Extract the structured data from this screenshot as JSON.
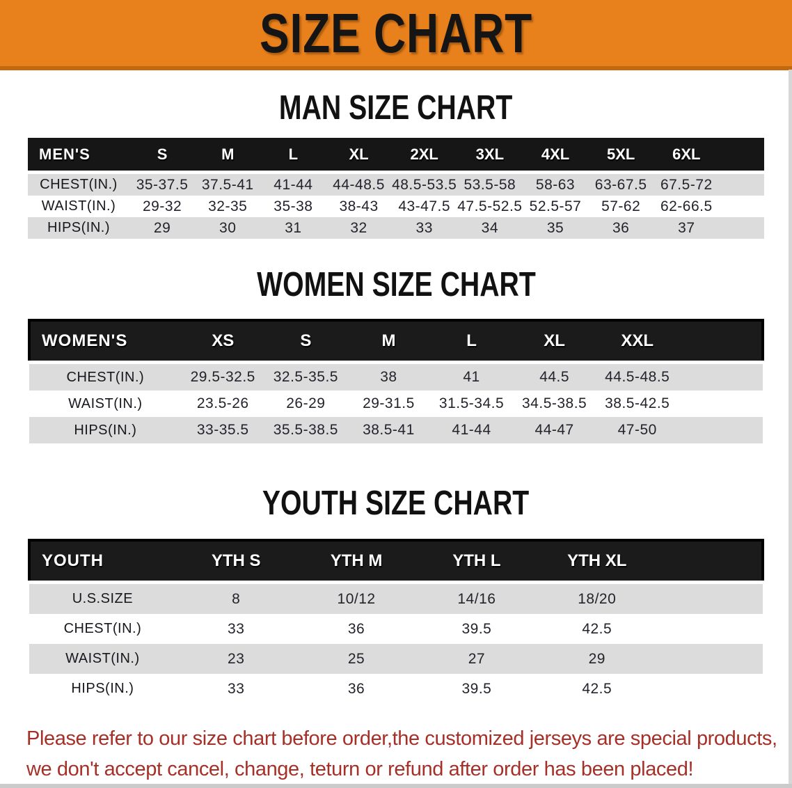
{
  "banner": {
    "title": "SIZE CHART"
  },
  "sections": {
    "men": {
      "heading": "MAN SIZE CHART",
      "table": {
        "header_label": "MEN'S",
        "columns": [
          "S",
          "M",
          "L",
          "XL",
          "2XL",
          "3XL",
          "4XL",
          "5XL",
          "6XL"
        ],
        "rows": [
          {
            "label": "CHEST(IN.)",
            "values": [
              "35-37.5",
              "37.5-41",
              "41-44",
              "44-48.5",
              "48.5-53.5",
              "53.5-58",
              "58-63",
              "63-67.5",
              "67.5-72"
            ]
          },
          {
            "label": "WAIST(IN.)",
            "values": [
              "29-32",
              "32-35",
              "35-38",
              "38-43",
              "43-47.5",
              "47.5-52.5",
              "52.5-57",
              "57-62",
              "62-66.5"
            ]
          },
          {
            "label": "HIPS(IN.)",
            "values": [
              "29",
              "30",
              "31",
              "32",
              "33",
              "34",
              "35",
              "36",
              "37"
            ]
          }
        ]
      }
    },
    "women": {
      "heading": "WOMEN SIZE CHART",
      "table": {
        "header_label": "WOMEN'S",
        "columns": [
          "XS",
          "S",
          "M",
          "L",
          "XL",
          "XXL"
        ],
        "rows": [
          {
            "label": "CHEST(IN.)",
            "values": [
              "29.5-32.5",
              "32.5-35.5",
              "38",
              "41",
              "44.5",
              "44.5-48.5"
            ]
          },
          {
            "label": "WAIST(IN.)",
            "values": [
              "23.5-26",
              "26-29",
              "29-31.5",
              "31.5-34.5",
              "34.5-38.5",
              "38.5-42.5"
            ]
          },
          {
            "label": "HIPS(IN.)",
            "values": [
              "33-35.5",
              "35.5-38.5",
              "38.5-41",
              "41-44",
              "44-47",
              "47-50"
            ]
          }
        ]
      }
    },
    "youth": {
      "heading": "YOUTH SIZE CHART",
      "table": {
        "header_label": "YOUTH",
        "columns": [
          "YTH S",
          "YTH M",
          "YTH L",
          "YTH XL"
        ],
        "rows": [
          {
            "label": "U.S.SIZE",
            "values": [
              "8",
              "10/12",
              "14/16",
              "18/20"
            ]
          },
          {
            "label": "CHEST(IN.)",
            "values": [
              "33",
              "36",
              "39.5",
              "42.5"
            ]
          },
          {
            "label": "WAIST(IN.)",
            "values": [
              "23",
              "25",
              "27",
              "29"
            ]
          },
          {
            "label": "HIPS(IN.)",
            "values": [
              "33",
              "36",
              "39.5",
              "42.5"
            ]
          }
        ]
      }
    }
  },
  "disclaimer": {
    "line1": "Please refer to our size chart before order,the customized jerseys are special products,",
    "line2": "we don't accept cancel, change, teturn or refund after order has been placed!"
  },
  "colors": {
    "banner_orange": "#E8811C",
    "header_black": "#161616",
    "stripe_gray": "#DCDCDC",
    "disclaimer_red": "#A63028"
  }
}
